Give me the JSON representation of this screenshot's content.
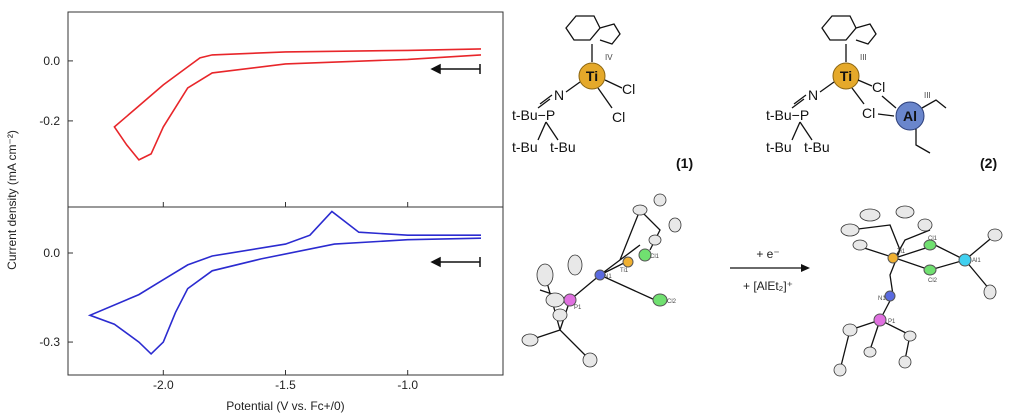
{
  "chart_data": [
    {
      "type": "line",
      "ylabel": "Current density (mA cm⁻²)",
      "x": [
        -0.7,
        -1.0,
        -1.5,
        -1.8,
        -1.9,
        -2.0,
        -2.05,
        -2.1,
        -2.15,
        -2.2,
        -2.1,
        -2.0,
        -1.9,
        -1.85,
        -1.8,
        -1.5,
        -1.0,
        -0.7
      ],
      "series": [
        {
          "color": "#e8262a",
          "values": [
            0.02,
            0.005,
            -0.01,
            -0.04,
            -0.09,
            -0.22,
            -0.31,
            -0.33,
            -0.28,
            -0.22,
            -0.15,
            -0.08,
            -0.02,
            0.01,
            0.02,
            0.03,
            0.035,
            0.04
          ]
        }
      ],
      "xlim": [
        -2.39,
        -0.61
      ],
      "ylim": [
        -0.487,
        0.163
      ],
      "yticks": [
        {
          "value": 0.0,
          "label": "0.0"
        },
        {
          "value": -0.2,
          "label": "-0.2"
        }
      ]
    },
    {
      "type": "line",
      "xlabel": "Potential (V vs. Fc+/0)",
      "x": [
        -0.7,
        -1.0,
        -1.3,
        -1.6,
        -1.8,
        -1.9,
        -1.95,
        -2.0,
        -2.05,
        -2.1,
        -2.2,
        -2.3,
        -2.1,
        -2.0,
        -1.9,
        -1.8,
        -1.5,
        -1.4,
        -1.31,
        -1.2,
        -1.0,
        -0.7
      ],
      "series": [
        {
          "color": "#2b2bd0",
          "values": [
            0.05,
            0.045,
            0.03,
            -0.02,
            -0.06,
            -0.12,
            -0.2,
            -0.3,
            -0.34,
            -0.3,
            -0.24,
            -0.21,
            -0.14,
            -0.09,
            -0.04,
            -0.01,
            0.03,
            0.06,
            0.14,
            0.07,
            0.06,
            0.06
          ]
        }
      ],
      "xlim": [
        -2.39,
        -0.61
      ],
      "ylim": [
        -0.411,
        0.155
      ],
      "xticks": [
        {
          "value": -2.0,
          "label": "-2.0"
        },
        {
          "value": -1.5,
          "label": "-1.5"
        },
        {
          "value": -1.0,
          "label": "-1.0"
        }
      ],
      "yticks": [
        {
          "value": 0.0,
          "label": "0.0"
        },
        {
          "value": -0.3,
          "label": "-0.3"
        }
      ]
    }
  ],
  "diagram": {
    "compound_1": {
      "metal": "Ti",
      "oxidation": "IV",
      "cl_a": "Cl",
      "cl_b": "Cl",
      "n": "N",
      "p_label": "t-Bu−P",
      "tbu_a": "t-Bu",
      "tbu_b": "t-Bu",
      "number": "(1)"
    },
    "compound_2": {
      "metal": "Ti",
      "oxidation": "III",
      "cl_a": "Cl",
      "cl_b": "Cl",
      "n": "N",
      "p_label": "t-Bu−P",
      "tbu_a": "t-Bu",
      "tbu_b": "t-Bu",
      "al": "Al",
      "al_oxidation": "III",
      "number": "(2)"
    },
    "reaction": {
      "above": "+ e⁻",
      "below": "+ [AlEt₂]⁺"
    },
    "ortep_1": {
      "ti": "Ti1",
      "n": "N1",
      "p": "P1",
      "cl1": "Cl1",
      "cl2": "Cl2"
    },
    "ortep_2": {
      "ti": "Ti1",
      "n": "N1",
      "p": "P1",
      "cl1": "Cl1",
      "cl2": "Cl2",
      "al": "Al1"
    }
  }
}
